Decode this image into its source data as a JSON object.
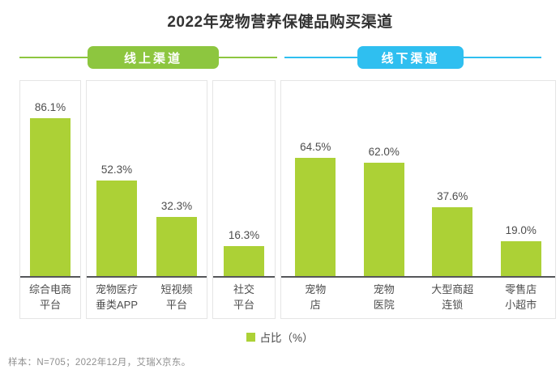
{
  "header": {
    "title": "2022年宠物营养保健品购买渠道"
  },
  "sections": {
    "online_label": "线上渠道",
    "offline_label": "线下渠道"
  },
  "legend": {
    "label": "占比（%）"
  },
  "footnote": "样本：N=705；2022年12月，艾瑞X京东。",
  "colors": {
    "online_accent": "#8dc63f",
    "offline_accent": "#2fbff0",
    "bar": "#acd136",
    "axis": "#55565a"
  },
  "chart_data": {
    "type": "bar",
    "title": "2022年宠物营养保健品购买渠道",
    "ylabel": "占比（%）",
    "unit": "%",
    "ylim": [
      0,
      100
    ],
    "grid": false,
    "legend_entries": [
      "占比（%）"
    ],
    "legend_position": "bottom-center",
    "groups": [
      {
        "label": "线上渠道",
        "accent_color": "#8dc63f",
        "panels": [
          {
            "categories": [
              "综合电商平台"
            ],
            "category_lines": [
              [
                "综合电商",
                "平台"
              ]
            ],
            "values": [
              86.1
            ]
          },
          {
            "categories": [
              "宠物医疗垂类APP",
              "短视频平台"
            ],
            "category_lines": [
              [
                "宠物医疗",
                "垂类APP"
              ],
              [
                "短视频",
                "平台"
              ]
            ],
            "values": [
              52.3,
              32.3
            ]
          },
          {
            "categories": [
              "社交平台"
            ],
            "category_lines": [
              [
                "社交",
                "平台"
              ]
            ],
            "values": [
              16.3
            ]
          }
        ]
      },
      {
        "label": "线下渠道",
        "accent_color": "#2fbff0",
        "panels": [
          {
            "categories": [
              "宠物店",
              "宠物医院",
              "大型商超连锁",
              "零售店小超市"
            ],
            "category_lines": [
              [
                "宠物",
                "店"
              ],
              [
                "宠物",
                "医院"
              ],
              [
                "大型商超",
                "连锁"
              ],
              [
                "零售店",
                "小超市"
              ]
            ],
            "values": [
              64.5,
              62.0,
              37.6,
              19.0
            ]
          }
        ]
      }
    ]
  }
}
